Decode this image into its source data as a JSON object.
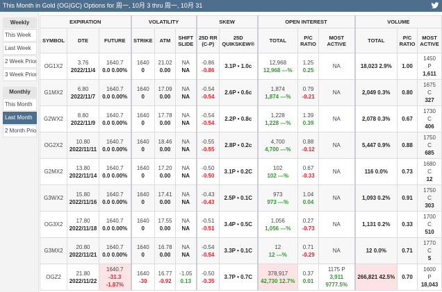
{
  "title": "This Month in Gold (OG|GC) Options for 周一, 10月 3 thru 周一, 10月 31",
  "icons": {
    "share": "twitter-bird-icon"
  },
  "sidebar": {
    "weekly": {
      "label": "Weekly",
      "items": [
        {
          "label": "This Week",
          "active": false
        },
        {
          "label": "Last Week",
          "active": false
        },
        {
          "label": "2 Week Prior",
          "active": false
        },
        {
          "label": "3 Week Prior",
          "active": false
        }
      ]
    },
    "monthly": {
      "label": "Monthly",
      "items": [
        {
          "label": "This Month",
          "active": false
        },
        {
          "label": "Last Month",
          "active": true
        },
        {
          "label": "2 Month Prior",
          "active": false
        }
      ]
    }
  },
  "table": {
    "groups": {
      "expiration": "EXPIRATION",
      "volatility": "VOLATILITY",
      "skew": "SKEW",
      "open_interest": "OPEN INTEREST",
      "volume": "VOLUME"
    },
    "columns": {
      "symbol": "SYMBOL",
      "dte": "DTE",
      "future": "FUTURE",
      "strike": "STRIKE",
      "atm": "ATM",
      "shift_slide": "SHIFT SLIDE",
      "rr": "25D RR (C-P)",
      "quikskew": "25D QUIKSKEW®",
      "oi_total": "TOTAL",
      "oi_pc": "P/C RATIO",
      "oi_most": "MOST ACTIVE",
      "vol_total": "TOTAL",
      "vol_pc": "P/C RATIO",
      "vol_most": "MOST ACTIVE"
    },
    "rows": [
      {
        "symbol": "OG1X2",
        "dte": "3.76",
        "date": "2022/11/4",
        "future": "1640.7",
        "future_chg": "0.0 0.00%",
        "strike": "1640",
        "strike_chg": "0",
        "atm": "21.02",
        "atm_chg": "0.00",
        "shift": "NA",
        "slide": "NA",
        "rr": "-0.86",
        "rr_chg": "-0.86",
        "quikskew": "3.1P • 1.0c",
        "oi_total": "12,968",
        "oi_chg": "12,968 ---%",
        "oi_pc": "1.25",
        "oi_pc_chg": "0.25",
        "oi_pc_dir": "up",
        "oi_most": "NA",
        "oi_most_chg": "",
        "oi_most_pct": "",
        "vol_total": "18,023 2.9%",
        "vol_pc": "1.00",
        "vol_most_strike": "1450",
        "vol_most_type": "P",
        "vol_most_qty": "1,611"
      },
      {
        "symbol": "G1MX2",
        "dte": "6.80",
        "date": "2022/11/7",
        "future": "1640.7",
        "future_chg": "0.0 0.00%",
        "strike": "1640",
        "strike_chg": "0",
        "atm": "17.09",
        "atm_chg": "0.00",
        "shift": "NA",
        "slide": "NA",
        "rr": "-0.54",
        "rr_chg": "-0.54",
        "quikskew": "2.6P • 0.6c",
        "oi_total": "1,874",
        "oi_chg": "1,874 ---%",
        "oi_pc": "0.79",
        "oi_pc_chg": "-0.21",
        "oi_pc_dir": "down",
        "oi_most": "NA",
        "oi_most_chg": "",
        "oi_most_pct": "",
        "vol_total": "2,049 0.3%",
        "vol_pc": "0.80",
        "vol_most_strike": "1675",
        "vol_most_type": "C",
        "vol_most_qty": "327"
      },
      {
        "symbol": "G2WX2",
        "dte": "8.80",
        "date": "2022/11/9",
        "future": "1640.7",
        "future_chg": "0.0 0.00%",
        "strike": "1640",
        "strike_chg": "0",
        "atm": "17.78",
        "atm_chg": "0.00",
        "shift": "NA",
        "slide": "NA",
        "rr": "-0.54",
        "rr_chg": "-0.54",
        "quikskew": "2.2P • 0.8c",
        "oi_total": "1,228",
        "oi_chg": "1,228 ---%",
        "oi_pc": "1.39",
        "oi_pc_chg": "0.39",
        "oi_pc_dir": "up",
        "oi_most": "NA",
        "oi_most_chg": "",
        "oi_most_pct": "",
        "vol_total": "2,078 0.3%",
        "vol_pc": "0.67",
        "vol_most_strike": "1730",
        "vol_most_type": "C",
        "vol_most_qty": "406"
      },
      {
        "symbol": "OG2X2",
        "dte": "10.80",
        "date": "2022/11/11",
        "future": "1640.7",
        "future_chg": "0.0 0.00%",
        "strike": "1640",
        "strike_chg": "0",
        "atm": "18.46",
        "atm_chg": "0.00",
        "shift": "NA",
        "slide": "NA",
        "rr": "-0.55",
        "rr_chg": "-0.55",
        "quikskew": "2.8P • 0.2c",
        "oi_total": "4,700",
        "oi_chg": "4,700 ---%",
        "oi_pc": "0.88",
        "oi_pc_chg": "-0.12",
        "oi_pc_dir": "down",
        "oi_most": "NA",
        "oi_most_chg": "",
        "oi_most_pct": "",
        "vol_total": "5,447 0.9%",
        "vol_pc": "0.88",
        "vol_most_strike": "1750",
        "vol_most_type": "C",
        "vol_most_qty": "685"
      },
      {
        "symbol": "G2MX2",
        "dte": "13.80",
        "date": "2022/11/14",
        "future": "1640.7",
        "future_chg": "0.0 0.00%",
        "strike": "1640",
        "strike_chg": "0",
        "atm": "17.20",
        "atm_chg": "0.00",
        "shift": "NA",
        "slide": "NA",
        "rr": "-0.50",
        "rr_chg": "-0.50",
        "quikskew": "3.1P • 0.2C",
        "oi_total": "102",
        "oi_chg": "102 ---%",
        "oi_pc": "0.67",
        "oi_pc_chg": "-0.33",
        "oi_pc_dir": "down",
        "oi_most": "NA",
        "oi_most_chg": "",
        "oi_most_pct": "",
        "vol_total": "116 0.0%",
        "vol_pc": "0.73",
        "vol_most_strike": "1680",
        "vol_most_type": "C",
        "vol_most_qty": "12"
      },
      {
        "symbol": "G3WX2",
        "dte": "15.80",
        "date": "2022/11/16",
        "future": "1640.7",
        "future_chg": "0.0 0.00%",
        "strike": "1640",
        "strike_chg": "0",
        "atm": "17.41",
        "atm_chg": "0.00",
        "shift": "NA",
        "slide": "NA",
        "rr": "-0.43",
        "rr_chg": "-0.43",
        "quikskew": "2.5P • 0.1C",
        "oi_total": "973",
        "oi_chg": "973 ---%",
        "oi_pc": "1.04",
        "oi_pc_chg": "0.04",
        "oi_pc_dir": "up",
        "oi_most": "NA",
        "oi_most_chg": "",
        "oi_most_pct": "",
        "vol_total": "1,093 0.2%",
        "vol_pc": "0.91",
        "vol_most_strike": "1750",
        "vol_most_type": "C",
        "vol_most_qty": "303"
      },
      {
        "symbol": "OG3X2",
        "dte": "17.80",
        "date": "2022/11/18",
        "future": "1640.7",
        "future_chg": "0.0 0.00%",
        "strike": "1640",
        "strike_chg": "0",
        "atm": "17.55",
        "atm_chg": "0.00",
        "shift": "NA",
        "slide": "NA",
        "rr": "-0.51",
        "rr_chg": "-0.51",
        "quikskew": "3.4P • 0.5C",
        "oi_total": "1,056",
        "oi_chg": "1,056 ---%",
        "oi_pc": "0.27",
        "oi_pc_chg": "-0.73",
        "oi_pc_dir": "down",
        "oi_most": "NA",
        "oi_most_chg": "",
        "oi_most_pct": "",
        "vol_total": "1,131 0.2%",
        "vol_pc": "0.33",
        "vol_most_strike": "1700",
        "vol_most_type": "C",
        "vol_most_qty": "510"
      },
      {
        "symbol": "G3MX2",
        "dte": "20.80",
        "date": "2022/11/21",
        "future": "1640.7",
        "future_chg": "0.0 0.00%",
        "strike": "1640",
        "strike_chg": "0",
        "atm": "16.78",
        "atm_chg": "0.00",
        "shift": "NA",
        "slide": "NA",
        "rr": "-0.54",
        "rr_chg": "-0.54",
        "quikskew": "3.3P • 0.1C",
        "oi_total": "12",
        "oi_chg": "12 ---%",
        "oi_pc": "0.71",
        "oi_pc_chg": "-0.29",
        "oi_pc_dir": "down",
        "oi_most": "NA",
        "oi_most_chg": "",
        "oi_most_pct": "",
        "vol_total": "12 0.0%",
        "vol_pc": "0.71",
        "vol_most_strike": "1770",
        "vol_most_type": "C",
        "vol_most_qty": "5"
      },
      {
        "symbol": "OGZ2",
        "dte": "21.80",
        "date": "2022/11/22",
        "future": "1640.7",
        "future_chg": "-31.3",
        "future_pct": "-1.87%",
        "strike": "1640",
        "strike_chg": "-30",
        "atm": "16.77",
        "atm_chg": "-0.92",
        "shift": "-1.05",
        "slide": "0.13",
        "rr": "-0.50",
        "rr_chg": "-0.35",
        "quikskew": "3.7P • 0.7C",
        "oi_total": "378,917",
        "oi_chg": "42,730 12.7%",
        "oi_pc": "0.37",
        "oi_pc_chg": "0.01",
        "oi_pc_dir": "up",
        "oi_most": "1175 P",
        "oi_most_chg": "3,911",
        "oi_most_pct": "9777.5%",
        "vol_total": "266,821 42.5%",
        "vol_pc": "0.70",
        "vol_most_strike": "1600",
        "vol_most_type": "P",
        "vol_most_qty": "18,043"
      }
    ]
  },
  "colors": {
    "title_bar": "#4e6e8e",
    "active_sidebar": "#4e6e8e",
    "positive": "#2b9a2b",
    "negative": "#e8232a",
    "highlight": "#fde3e3"
  }
}
